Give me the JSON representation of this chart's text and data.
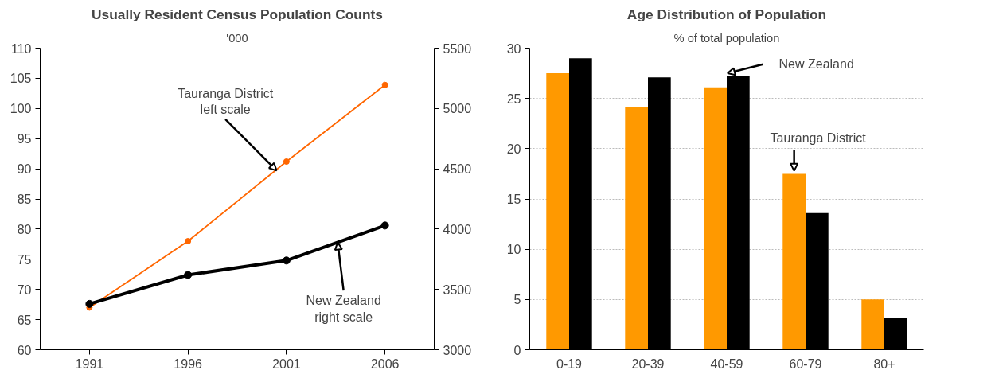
{
  "chart_data": [
    {
      "type": "line",
      "title": "Usually Resident Census Population Counts",
      "subtitle": "'000",
      "x": [
        1991,
        1996,
        2001,
        2006
      ],
      "series": [
        {
          "color": "#ff6600",
          "values": [
            67.0,
            78.0,
            91.2,
            103.9
          ]
        },
        {
          "color": "#000000",
          "values": [
            3380,
            3620,
            3740,
            4030
          ],
          "axis": "y2"
        }
      ],
      "xlim": [
        1988.5,
        2008.5
      ],
      "xticks": [
        1991,
        1996,
        2001,
        2006
      ],
      "ylim": [
        60,
        110
      ],
      "yticks": [
        60,
        65,
        70,
        75,
        80,
        85,
        90,
        95,
        100,
        105,
        110
      ],
      "y2lim": [
        3000,
        5500
      ],
      "y2ticks": [
        3000,
        3500,
        4000,
        4500,
        5000,
        5500
      ],
      "grid": false,
      "marker": "circle",
      "line_style": "solid",
      "annotations": [
        {
          "text": "Tauranga District\nleft scale",
          "x": 2000.5,
          "y": 89.7
        },
        {
          "text": "New Zealand\nright scale",
          "x": 2003.6,
          "y": 77.8
        }
      ]
    },
    {
      "type": "bar",
      "title": "Age Distribution of Population",
      "subtitle": "% of total population",
      "categories": [
        "0-19",
        "20-39",
        "40-59",
        "60-79",
        "80+"
      ],
      "series": [
        {
          "color": "#ff9900",
          "values": [
            27.5,
            24.1,
            26.1,
            17.5,
            5.0
          ]
        },
        {
          "color": "#000000",
          "values": [
            29.0,
            27.1,
            27.2,
            13.6,
            3.2
          ]
        }
      ],
      "ylim": [
        0,
        30
      ],
      "yticks": [
        0,
        5,
        10,
        15,
        20,
        25,
        30
      ],
      "grid": "y",
      "annotations": [
        {
          "text": "New Zealand",
          "x": "40-59",
          "y": 27.2
        },
        {
          "text": "Tauranga District",
          "x": "60-79",
          "y": 17.5
        }
      ]
    }
  ]
}
